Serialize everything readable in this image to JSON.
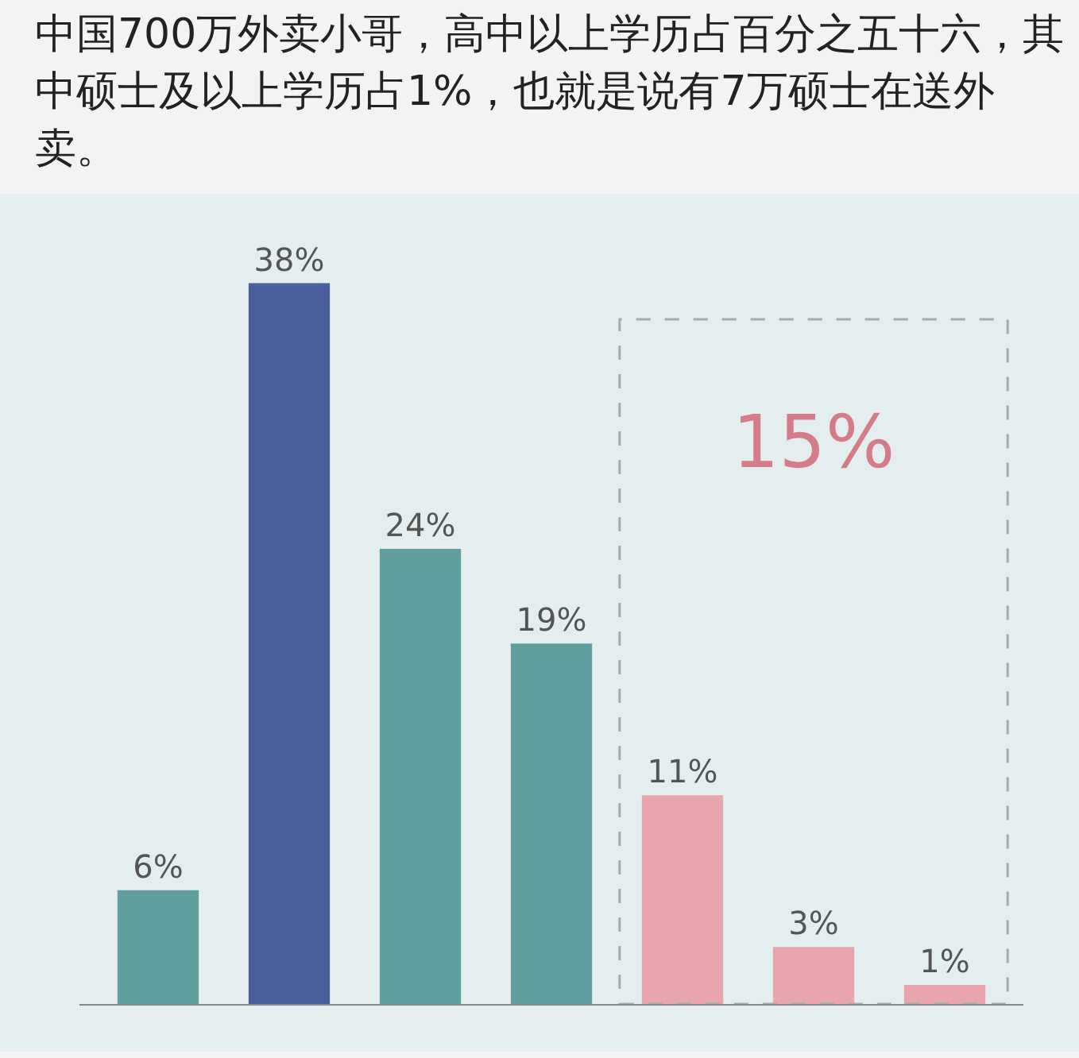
{
  "chart_data": {
    "type": "bar",
    "title": "中国700万外卖小哥，高中以上学历占百分之五十六，其中硕士及以上学历占1%，也就是说有7万硕士在送外卖。",
    "categories": [
      null,
      null,
      null,
      null,
      null,
      null,
      null
    ],
    "values": [
      6,
      38,
      24,
      19,
      11,
      3,
      1
    ],
    "colors": [
      "#5f9e9c",
      "#4a5f9c",
      "#5f9e9c",
      "#5f9e9c",
      "#e8a5ae",
      "#e8a5ae",
      "#e8a5ae"
    ],
    "value_labels": [
      "6%",
      "38%",
      "24%",
      "19%",
      "11%",
      "3%",
      "1%"
    ],
    "annotations": [
      "15%"
    ]
  }
}
